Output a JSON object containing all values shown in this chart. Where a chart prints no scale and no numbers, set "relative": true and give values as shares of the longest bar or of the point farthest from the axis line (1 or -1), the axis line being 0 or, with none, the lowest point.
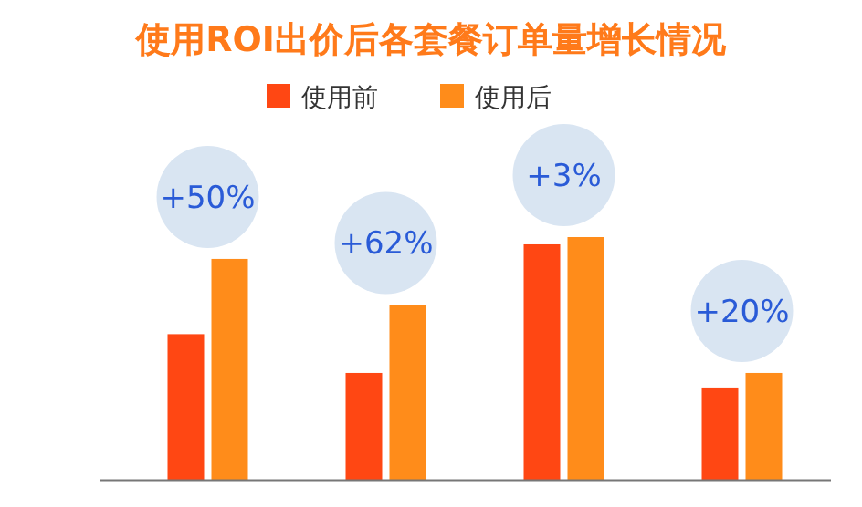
{
  "chart_data": {
    "type": "bar",
    "title": "使用ROI出价后各套餐订单量增长情况",
    "relative": true,
    "categories": [
      null,
      null,
      null,
      null
    ],
    "series": [
      {
        "name": "使用前",
        "color": "#ff4713",
        "values": [
          0.6,
          0.44,
          0.97,
          0.38
        ]
      },
      {
        "name": "使用后",
        "color": "#ff8c1a",
        "values": [
          0.91,
          0.72,
          1,
          0.44
        ]
      }
    ],
    "annotations": [
      "+50%",
      "+62%",
      "+3%",
      "+20%"
    ],
    "legend": "top"
  }
}
